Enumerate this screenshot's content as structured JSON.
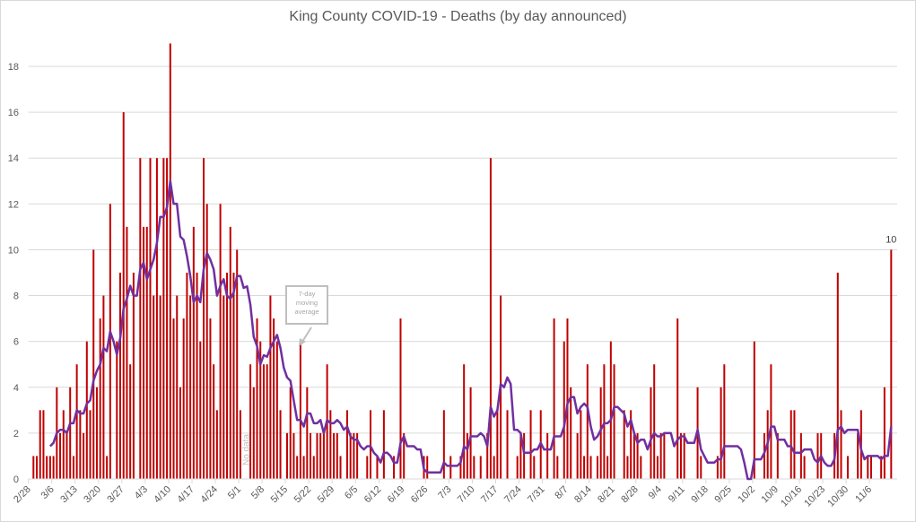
{
  "chart_data": {
    "type": "bar",
    "title": "King County COVID-19 - Deaths (by day announced)",
    "xlabel": "",
    "ylabel": "",
    "ylim": [
      0,
      18
    ],
    "y_ticks": [
      "0",
      "2",
      "4",
      "6",
      "8",
      "10",
      "12",
      "14",
      "16",
      "18"
    ],
    "x_ticks": [
      "2/28",
      "3/6",
      "3/13",
      "3/20",
      "3/27",
      "4/3",
      "4/10",
      "4/17",
      "4/24",
      "5/1",
      "5/8",
      "5/15",
      "5/22",
      "5/29",
      "6/5",
      "6/12",
      "6/19",
      "6/26",
      "7/3",
      "7/10",
      "7/17",
      "7/24",
      "7/31",
      "8/7",
      "8/14",
      "8/21",
      "8/28",
      "9/4",
      "9/11",
      "9/18",
      "9/25",
      "10/2",
      "10/9",
      "10/16",
      "10/23",
      "10/30",
      "11/6"
    ],
    "grid": true,
    "colors": {
      "bars": "#c00000",
      "moving_average": "#7030a0"
    },
    "x": [
      "2/28",
      "2/29",
      "3/1",
      "3/2",
      "3/3",
      "3/4",
      "3/5",
      "3/6",
      "3/7",
      "3/8",
      "3/9",
      "3/10",
      "3/11",
      "3/12",
      "3/13",
      "3/14",
      "3/15",
      "3/16",
      "3/17",
      "3/18",
      "3/19",
      "3/20",
      "3/21",
      "3/22",
      "3/23",
      "3/24",
      "3/25",
      "3/26",
      "3/27",
      "3/28",
      "3/29",
      "3/30",
      "3/31",
      "4/1",
      "4/2",
      "4/3",
      "4/4",
      "4/5",
      "4/6",
      "4/7",
      "4/8",
      "4/9",
      "4/10",
      "4/11",
      "4/12",
      "4/13",
      "4/14",
      "4/15",
      "4/16",
      "4/17",
      "4/18",
      "4/19",
      "4/20",
      "4/21",
      "4/22",
      "4/23",
      "4/24",
      "4/25",
      "4/26",
      "4/27",
      "4/28",
      "4/29",
      "4/30",
      "5/1",
      "5/2",
      "5/3",
      "5/4",
      "5/5",
      "5/6",
      "5/7",
      "5/8",
      "5/9",
      "5/10",
      "5/11",
      "5/12",
      "5/13",
      "5/14",
      "5/15",
      "5/16",
      "5/17",
      "5/18",
      "5/19",
      "5/20",
      "5/21",
      "5/22",
      "5/23",
      "5/24",
      "5/25",
      "5/26",
      "5/27",
      "5/28",
      "5/29",
      "5/30",
      "5/31",
      "6/1",
      "6/2",
      "6/3",
      "6/4",
      "6/5",
      "6/6",
      "6/7",
      "6/8",
      "6/9",
      "6/10",
      "6/11",
      "6/12",
      "6/13",
      "6/14",
      "6/15",
      "6/16",
      "6/17",
      "6/18",
      "6/19",
      "6/20",
      "6/21",
      "6/22",
      "6/23",
      "6/24",
      "6/25",
      "6/26",
      "6/27",
      "6/28",
      "6/29",
      "6/30",
      "7/1",
      "7/2",
      "7/3",
      "7/4",
      "7/5",
      "7/6",
      "7/7",
      "7/8",
      "7/9",
      "7/10",
      "7/11",
      "7/12",
      "7/13",
      "7/14",
      "7/15",
      "7/16",
      "7/17",
      "7/18",
      "7/19",
      "7/20",
      "7/21",
      "7/22",
      "7/23",
      "7/24",
      "7/25",
      "7/26",
      "7/27",
      "7/28",
      "7/29",
      "7/30",
      "7/31",
      "8/1",
      "8/2",
      "8/3",
      "8/4",
      "8/5",
      "8/6",
      "8/7",
      "8/8",
      "8/9",
      "8/10",
      "8/11",
      "8/12",
      "8/13",
      "8/14",
      "8/15",
      "8/16",
      "8/17",
      "8/18",
      "8/19",
      "8/20",
      "8/21",
      "8/22",
      "8/23",
      "8/24",
      "8/25",
      "8/26",
      "8/27",
      "8/28",
      "8/29",
      "8/30",
      "8/31",
      "9/1",
      "9/2",
      "9/3",
      "9/4",
      "9/5",
      "9/6",
      "9/7",
      "9/8",
      "9/9",
      "9/10",
      "9/11",
      "9/12",
      "9/13",
      "9/14",
      "9/15",
      "9/16",
      "9/17",
      "9/18",
      "9/19",
      "9/20",
      "9/21",
      "9/22",
      "9/23",
      "9/24",
      "9/25",
      "9/26",
      "9/27",
      "9/28",
      "9/29",
      "9/30",
      "10/1",
      "10/2",
      "10/3",
      "10/4",
      "10/5",
      "10/6",
      "10/7",
      "10/8",
      "10/9",
      "10/10",
      "10/11",
      "10/12",
      "10/13",
      "10/14",
      "10/15",
      "10/16",
      "10/17",
      "10/18",
      "10/19",
      "10/20",
      "10/21",
      "10/22",
      "10/23",
      "10/24",
      "10/25",
      "10/26",
      "10/27",
      "10/28",
      "10/29",
      "10/30",
      "10/31",
      "11/1",
      "11/2",
      "11/3",
      "11/4",
      "11/5",
      "11/6",
      "11/7",
      "11/8",
      "11/9",
      "11/10",
      "11/11",
      "11/12"
    ],
    "series": [
      {
        "values": [
          0,
          1,
          1,
          3,
          3,
          1,
          1,
          1,
          4,
          2,
          3,
          2,
          4,
          1,
          5,
          3,
          2,
          6,
          3,
          10,
          4,
          7,
          8,
          1,
          12,
          0,
          6,
          9,
          16,
          11,
          5,
          9,
          0,
          14,
          11,
          11,
          14,
          8,
          14,
          8,
          14,
          14,
          19,
          7,
          8,
          4,
          7,
          9,
          8,
          11,
          9,
          6,
          14,
          12,
          7,
          5,
          3,
          12,
          8,
          9,
          11,
          9,
          10,
          3,
          null,
          null,
          5,
          4,
          7,
          6,
          5,
          5,
          8,
          7,
          6,
          3,
          0,
          2,
          4,
          2,
          1,
          6,
          1,
          4,
          2,
          1,
          2,
          2,
          2,
          5,
          3,
          2,
          2,
          1,
          0,
          3,
          2,
          2,
          2,
          0,
          0,
          1,
          3,
          0,
          1,
          0,
          3,
          0,
          0,
          1,
          0,
          7,
          2,
          0,
          0,
          0,
          0,
          0,
          1,
          1,
          0,
          0,
          0,
          0,
          3,
          0,
          1,
          0,
          0,
          1,
          5,
          2,
          4,
          1,
          0,
          1,
          0,
          2,
          14,
          1,
          3,
          8,
          0,
          3,
          0,
          0,
          1,
          2,
          2,
          0,
          3,
          1,
          0,
          3,
          0,
          2,
          0,
          7,
          1,
          0,
          6,
          7,
          4,
          0,
          2,
          3,
          1,
          5,
          1,
          0,
          1,
          4,
          5,
          1,
          6,
          5,
          0,
          0,
          3,
          1,
          3,
          2,
          2,
          1,
          0,
          0,
          4,
          5,
          1,
          2,
          2,
          0,
          0,
          0,
          7,
          2,
          2,
          0,
          0,
          0,
          4,
          1,
          0,
          0,
          0,
          0,
          1,
          4,
          5,
          0,
          0,
          0,
          0,
          0,
          0,
          0,
          0,
          6,
          0,
          0,
          2,
          3,
          5,
          0,
          2,
          0,
          0,
          0,
          3,
          3,
          0,
          2,
          1,
          0,
          0,
          0,
          2,
          2,
          0,
          0,
          0,
          2,
          9,
          3,
          0,
          1,
          0,
          0,
          2,
          3,
          0,
          1,
          1,
          0,
          0,
          1,
          4,
          0,
          10
        ]
      }
    ],
    "moving_average_window": 7,
    "annotations": {
      "moving_average_note": [
        "7-day",
        "moving",
        "average"
      ],
      "no_data": "No data",
      "last_value_label": "10"
    }
  }
}
